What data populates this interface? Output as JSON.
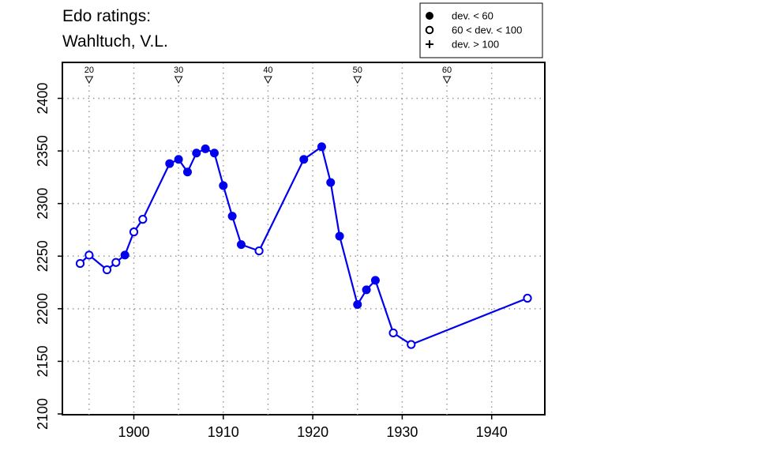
{
  "chart_data": {
    "type": "line",
    "title_lines": [
      "Edo ratings:",
      "Wahltuch, V.L."
    ],
    "xlabel": "",
    "ylabel": "",
    "xlim": [
      1893,
      1946
    ],
    "ylim": [
      2100,
      2420
    ],
    "x_ticks": [
      1900,
      1910,
      1920,
      1930,
      1940
    ],
    "y_ticks": [
      2100,
      2150,
      2200,
      2250,
      2300,
      2350,
      2400
    ],
    "grid": true,
    "series_color": "#0000ee",
    "age_markers": [
      {
        "label": "20",
        "x": 1895
      },
      {
        "label": "30",
        "x": 1905
      },
      {
        "label": "40",
        "x": 1915
      },
      {
        "label": "50",
        "x": 1925
      },
      {
        "label": "60",
        "x": 1935
      }
    ],
    "legend": {
      "position": "top-right",
      "entries": [
        {
          "symbol": "filled-circle",
          "label": "dev. < 60"
        },
        {
          "symbol": "open-circle",
          "label": "60 < dev. < 100"
        },
        {
          "symbol": "plus",
          "label": "dev. > 100"
        }
      ]
    },
    "points": [
      {
        "x": 1894,
        "y": 2243,
        "marker": "open"
      },
      {
        "x": 1895,
        "y": 2251,
        "marker": "open"
      },
      {
        "x": 1897,
        "y": 2237,
        "marker": "open"
      },
      {
        "x": 1898,
        "y": 2244,
        "marker": "open"
      },
      {
        "x": 1899,
        "y": 2251,
        "marker": "filled"
      },
      {
        "x": 1900,
        "y": 2273,
        "marker": "open"
      },
      {
        "x": 1901,
        "y": 2285,
        "marker": "open"
      },
      {
        "x": 1904,
        "y": 2338,
        "marker": "filled"
      },
      {
        "x": 1905,
        "y": 2342,
        "marker": "filled"
      },
      {
        "x": 1906,
        "y": 2330,
        "marker": "filled"
      },
      {
        "x": 1907,
        "y": 2348,
        "marker": "filled"
      },
      {
        "x": 1908,
        "y": 2352,
        "marker": "filled"
      },
      {
        "x": 1909,
        "y": 2348,
        "marker": "filled"
      },
      {
        "x": 1910,
        "y": 2317,
        "marker": "filled"
      },
      {
        "x": 1911,
        "y": 2288,
        "marker": "filled"
      },
      {
        "x": 1912,
        "y": 2261,
        "marker": "filled"
      },
      {
        "x": 1914,
        "y": 2255,
        "marker": "open"
      },
      {
        "x": 1919,
        "y": 2342,
        "marker": "filled"
      },
      {
        "x": 1921,
        "y": 2354,
        "marker": "filled"
      },
      {
        "x": 1922,
        "y": 2320,
        "marker": "filled"
      },
      {
        "x": 1923,
        "y": 2269,
        "marker": "filled"
      },
      {
        "x": 1925,
        "y": 2204,
        "marker": "filled"
      },
      {
        "x": 1926,
        "y": 2218,
        "marker": "filled"
      },
      {
        "x": 1927,
        "y": 2227,
        "marker": "filled"
      },
      {
        "x": 1929,
        "y": 2177,
        "marker": "open"
      },
      {
        "x": 1931,
        "y": 2166,
        "marker": "open"
      },
      {
        "x": 1944,
        "y": 2210,
        "marker": "open"
      }
    ]
  }
}
